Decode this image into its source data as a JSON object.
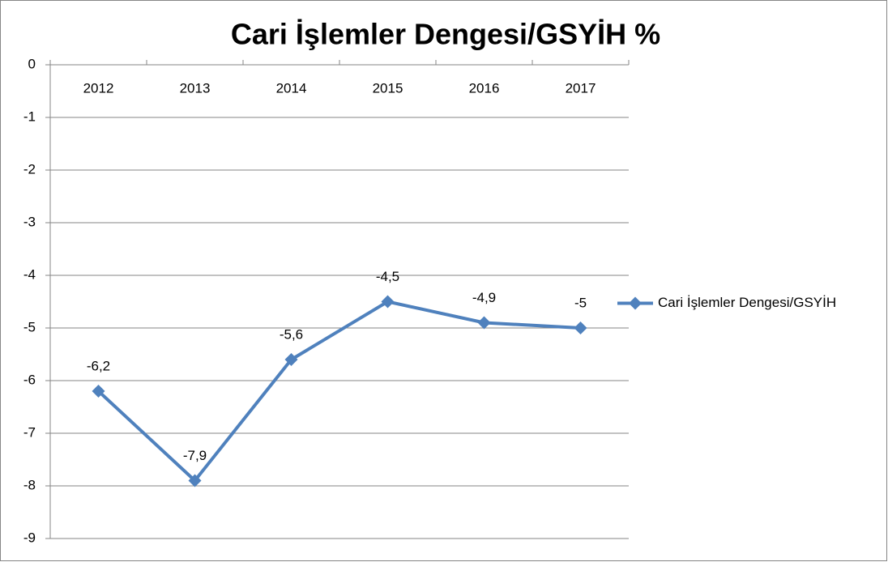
{
  "chart_data": {
    "type": "line",
    "title": "Cari İşlemler Dengesi/GSYİH %",
    "categories": [
      "2012",
      "2013",
      "2014",
      "2015",
      "2016",
      "2017"
    ],
    "series": [
      {
        "name": "Cari İşlemler Dengesi/GSYİH",
        "color": "#4f81bd",
        "values": [
          -6.2,
          -7.9,
          -5.6,
          -4.5,
          -4.9,
          -5
        ],
        "value_labels": [
          "-6,2",
          "-7,9",
          "-5,6",
          "-4,5",
          "-4,9",
          "-5"
        ]
      }
    ],
    "ylim": [
      -9,
      0
    ],
    "yticks": [
      0,
      -1,
      -2,
      -3,
      -4,
      -5,
      -6,
      -7,
      -8,
      -9
    ],
    "grid": true,
    "legend": "right"
  }
}
